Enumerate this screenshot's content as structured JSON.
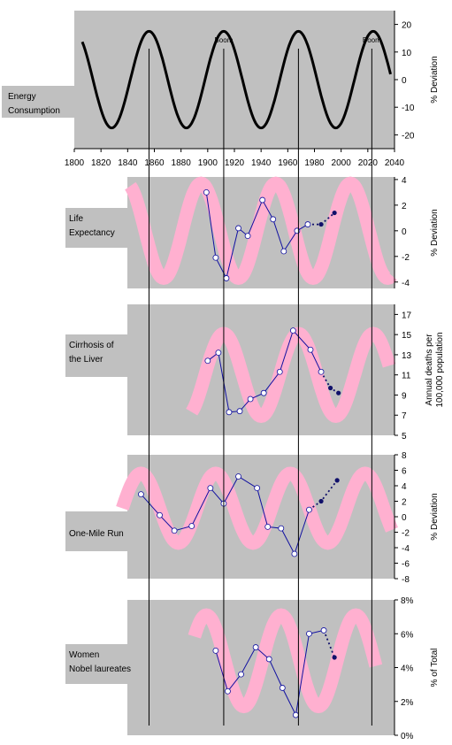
{
  "colors": {
    "panel_bg": "#c0c0c0",
    "wave_band": "#ffb0d0",
    "series_line": "#1010a0",
    "marker_fill": "#ffffff",
    "projection_marker": "#10106a",
    "energy_line": "#000000",
    "grid_line": "#000000"
  },
  "chart_data": [
    {
      "id": "energy",
      "type": "line",
      "label_lines": [
        "Energy",
        "Consumption"
      ],
      "ylabel_lines": [
        "% Deviation"
      ],
      "xlim": [
        1800,
        2040
      ],
      "x_ticks": [
        1800,
        1820,
        1840,
        1860,
        1880,
        1900,
        1920,
        1940,
        1960,
        1980,
        2000,
        2020,
        2040
      ],
      "ylim": [
        -25,
        25
      ],
      "y_ticks": [
        -20,
        -10,
        0,
        10,
        20
      ],
      "y_tick_labels": [
        "-20",
        "-10",
        "0",
        "10",
        "20"
      ],
      "wave": {
        "amplitude": 17.5,
        "period": 56,
        "peak_year": 1856,
        "start": 1806,
        "end": 2037
      },
      "annotations": [
        {
          "text": "Boom",
          "x": 1912
        },
        {
          "text": "Boom",
          "x": 2023
        }
      ]
    },
    {
      "id": "life",
      "type": "line",
      "label_lines": [
        "Life",
        "Expectancy"
      ],
      "ylabel_lines": [
        "% Deviation"
      ],
      "ylim": [
        -4.5,
        4.2
      ],
      "y_ticks": [
        -4,
        -2,
        0,
        2,
        4
      ],
      "y_tick_labels": [
        "-4",
        "-2",
        "0",
        "2",
        "4"
      ],
      "band": {
        "start": 1842,
        "end": 2038,
        "peak_year": 1895,
        "period": 56,
        "center": 0,
        "amplitude": 3.7
      },
      "series": [
        {
          "x": [
            1899,
            1906,
            1914,
            1923,
            1930,
            1941,
            1949,
            1957,
            1967,
            1975
          ],
          "y": [
            3.0,
            -2.1,
            -3.7,
            0.2,
            -0.4,
            2.4,
            0.9,
            -1.6,
            0.0,
            0.5
          ]
        }
      ],
      "projection": {
        "x": [
          1975,
          1985,
          1995
        ],
        "y": [
          0.5,
          0.5,
          1.4
        ]
      }
    },
    {
      "id": "cirrhosis",
      "type": "line",
      "label_lines": [
        "Cirrhosis of",
        "the Liver"
      ],
      "ylabel_lines": [
        "Annual deaths per",
        "100,000 population"
      ],
      "ylim": [
        5,
        18
      ],
      "y_ticks": [
        5,
        7,
        9,
        11,
        13,
        15,
        17
      ],
      "y_tick_labels": [
        "5",
        "7",
        "9",
        "11",
        "13",
        "15",
        "17"
      ],
      "band": {
        "start": 1888,
        "end": 2036,
        "peak_year": 1912,
        "period": 56,
        "center": 11,
        "amplitude": 4.1
      },
      "series": [
        {
          "x": [
            1900,
            1908,
            1916,
            1924,
            1932,
            1942,
            1954,
            1964,
            1977,
            1985
          ],
          "y": [
            12.4,
            13.2,
            7.3,
            7.4,
            8.6,
            9.2,
            11.3,
            15.4,
            13.5,
            11.3
          ]
        }
      ],
      "projection": {
        "x": [
          1985,
          1992,
          1998
        ],
        "y": [
          11.3,
          9.7,
          9.2
        ]
      }
    },
    {
      "id": "mile",
      "type": "line",
      "label_lines": [
        "One-Mile Run"
      ],
      "ylabel_lines": [
        "% Deviation"
      ],
      "ylim": [
        -8,
        8
      ],
      "y_ticks": [
        -8,
        -6,
        -4,
        -2,
        0,
        2,
        4,
        6,
        8
      ],
      "y_tick_labels": [
        "-8",
        "-6",
        "-4",
        "-2",
        "0",
        "2",
        "4",
        "6",
        "8"
      ],
      "band": {
        "start": 1836,
        "end": 2038,
        "peak_year": 1850,
        "period": 56,
        "center": 1.1,
        "amplitude": 4.5
      },
      "series": [
        {
          "x": [
            1850,
            1864,
            1875,
            1888,
            1902,
            1912,
            1923,
            1937,
            1945,
            1955,
            1965,
            1976
          ],
          "y": [
            2.9,
            0.2,
            -1.8,
            -1.2,
            3.7,
            1.7,
            5.2,
            3.7,
            -1.3,
            -1.5,
            -4.8,
            0.9
          ]
        }
      ],
      "projection": {
        "x": [
          1976,
          1985,
          1997
        ],
        "y": [
          0.9,
          2.0,
          4.7
        ]
      }
    },
    {
      "id": "nobel",
      "type": "line",
      "label_lines": [
        "Women",
        "Nobel laureates"
      ],
      "ylabel_lines": [
        "% of Total"
      ],
      "ylim": [
        0,
        8
      ],
      "y_ticks": [
        0,
        2,
        4,
        6,
        8
      ],
      "y_tick_labels": [
        "0%",
        "2%",
        "4%",
        "6%",
        "8%"
      ],
      "band": {
        "start": 1890,
        "end": 2026,
        "peak_year": 1955,
        "period": 56,
        "center": 4.4,
        "amplitude": 2.7
      },
      "series": [
        {
          "x": [
            1906,
            1915,
            1925,
            1936,
            1946,
            1956,
            1966,
            1976,
            1987
          ],
          "y": [
            5.0,
            2.6,
            3.6,
            5.2,
            4.5,
            2.8,
            1.2,
            6.0,
            6.2
          ]
        }
      ],
      "projection": {
        "x": [
          1987,
          1995
        ],
        "y": [
          6.2,
          4.6
        ]
      }
    }
  ],
  "vertical_guides": [
    1856,
    1912,
    1968,
    2023
  ]
}
